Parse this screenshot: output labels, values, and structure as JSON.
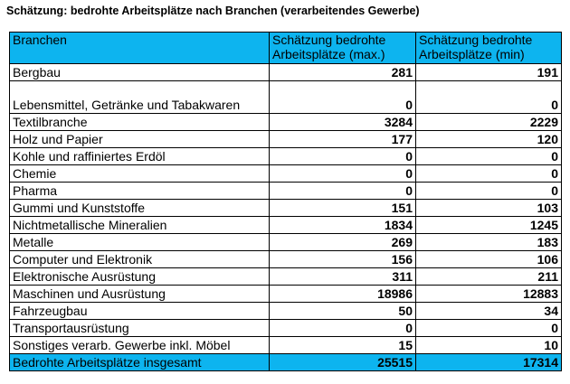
{
  "title": "Schätzung: bedrohte Arbeitsplätze nach Branchen (verarbeitendes Gewerbe)",
  "table": {
    "headers": [
      "Branchen",
      "Schätzung bedrohte Arbeitsplätze (max.)",
      "Schätzung bedrohte Arbeitsplätze (min)"
    ],
    "rows": [
      {
        "label": "Bergbau",
        "max": "281",
        "min": "191"
      },
      {
        "label": "Lebensmittel, Getränke und Tabakwaren",
        "max": "0",
        "min": "0"
      },
      {
        "label": "Textilbranche",
        "max": "3284",
        "min": "2229"
      },
      {
        "label": "Holz und Papier",
        "max": "177",
        "min": "120"
      },
      {
        "label": "Kohle und raffiniertes Erdöl",
        "max": "0",
        "min": "0"
      },
      {
        "label": "Chemie",
        "max": "0",
        "min": "0"
      },
      {
        "label": "Pharma",
        "max": "0",
        "min": "0"
      },
      {
        "label": "Gummi und Kunststoffe",
        "max": "151",
        "min": "103"
      },
      {
        "label": "Nichtmetallische Mineralien",
        "max": "1834",
        "min": "1245"
      },
      {
        "label": "Metalle",
        "max": "269",
        "min": "183"
      },
      {
        "label": "Computer und Elektronik",
        "max": "156",
        "min": "106"
      },
      {
        "label": "Elektronische Ausrüstung",
        "max": "311",
        "min": "211"
      },
      {
        "label": "Maschinen und Ausrüstung",
        "max": "18986",
        "min": "12883"
      },
      {
        "label": "Fahrzeugbau",
        "max": "50",
        "min": "34"
      },
      {
        "label": "Transportausrüstung",
        "max": "0",
        "min": "0"
      },
      {
        "label": "Sonstiges verarb. Gewerbe inkl. Möbel",
        "max": "15",
        "min": "10"
      }
    ],
    "total": {
      "label": "Bedrohte Arbeitsplätze insgesamt",
      "max": "25515",
      "min": "17314"
    }
  },
  "colors": {
    "header_background": "#0db4ef",
    "total_background": "#0db4ef",
    "border": "#000000"
  }
}
